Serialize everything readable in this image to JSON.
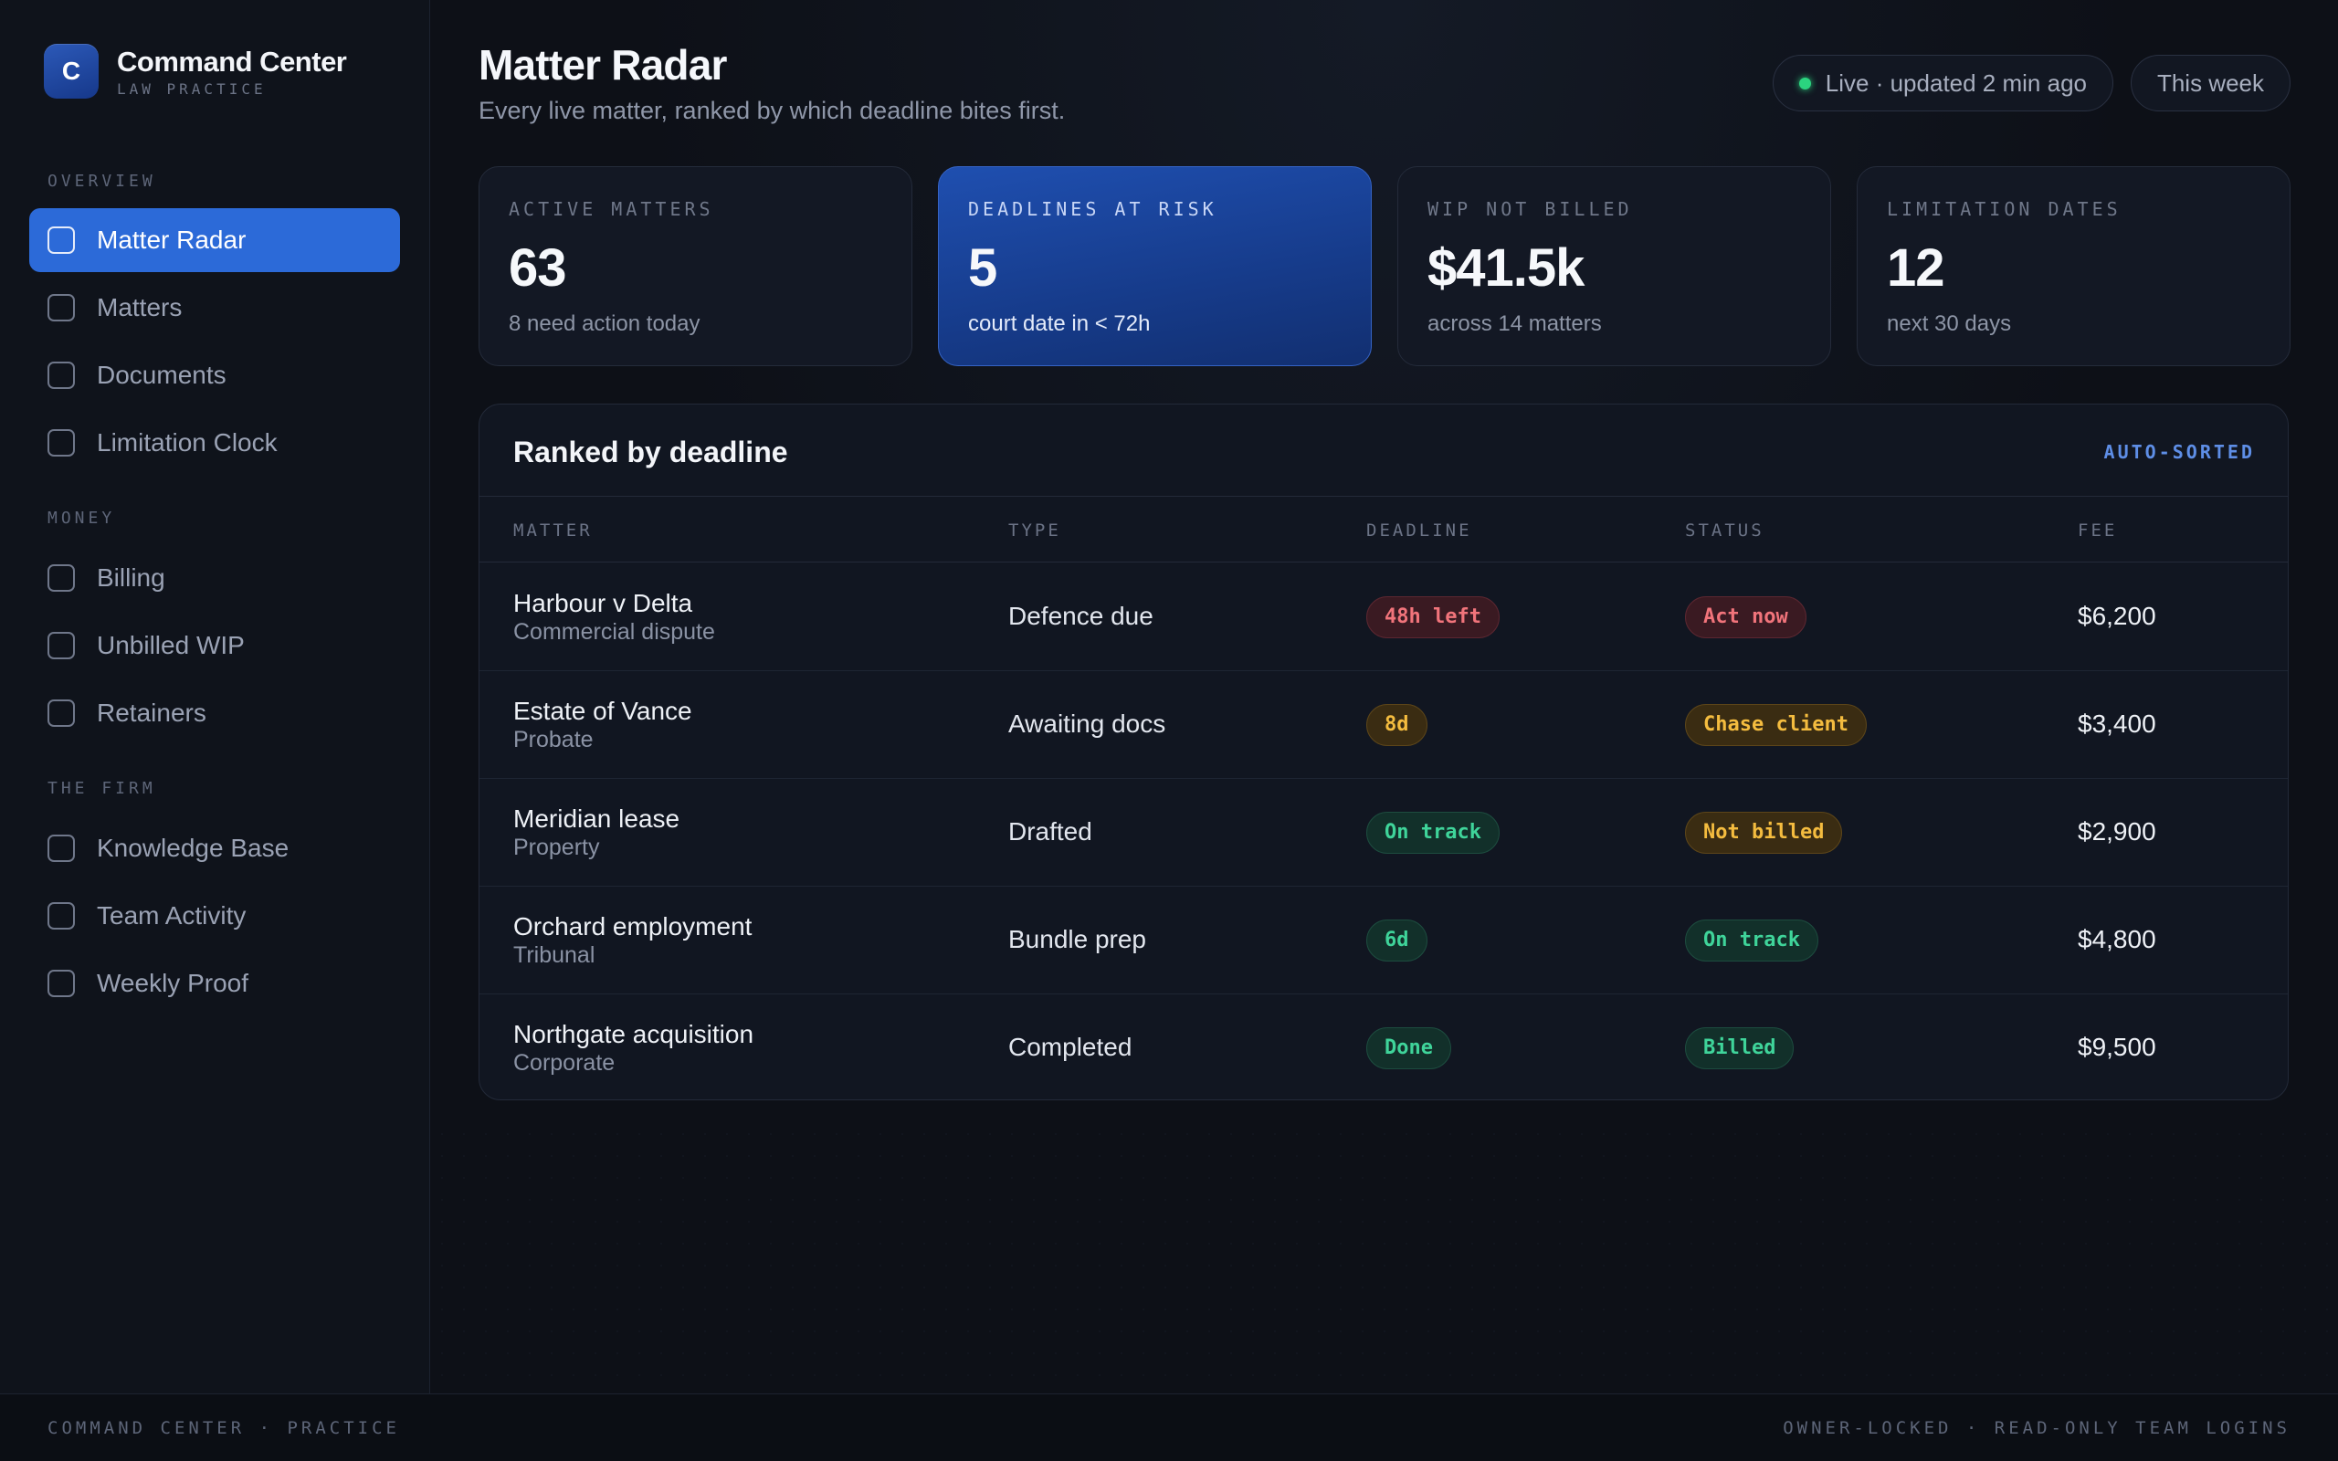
{
  "brand": {
    "logo_letter": "C",
    "title": "Command Center",
    "subtitle": "LAW PRACTICE"
  },
  "sidebar": {
    "sections": [
      {
        "label": "OVERVIEW",
        "items": [
          "Matter Radar",
          "Matters",
          "Documents",
          "Limitation Clock"
        ]
      },
      {
        "label": "MONEY",
        "items": [
          "Billing",
          "Unbilled WIP",
          "Retainers"
        ]
      },
      {
        "label": "THE FIRM",
        "items": [
          "Knowledge Base",
          "Team Activity",
          "Weekly Proof"
        ]
      }
    ],
    "active_item": "Matter Radar"
  },
  "header": {
    "title": "Matter Radar",
    "subtitle": "Every live matter, ranked by which deadline bites first.",
    "live_status": "Live · updated 2 min ago",
    "period": "This week"
  },
  "stats": [
    {
      "label": "ACTIVE MATTERS",
      "value": "63",
      "note": "8 need action today"
    },
    {
      "label": "DEADLINES AT RISK",
      "value": "5",
      "note": "court date in < 72h"
    },
    {
      "label": "WIP NOT BILLED",
      "value": "$41.5k",
      "note": "across 14 matters"
    },
    {
      "label": "LIMITATION DATES",
      "value": "12",
      "note": "next 30 days"
    }
  ],
  "table": {
    "title": "Ranked by deadline",
    "tag": "AUTO-SORTED",
    "columns": [
      "MATTER",
      "TYPE",
      "DEADLINE",
      "STATUS",
      "FEE"
    ],
    "rows": [
      {
        "matter": "Harbour v Delta",
        "category": "Commercial dispute",
        "type": "Defence due",
        "deadline": "48h left",
        "deadline_tone": "red",
        "status": "Act now",
        "status_tone": "red",
        "fee": "$6,200"
      },
      {
        "matter": "Estate of Vance",
        "category": "Probate",
        "type": "Awaiting docs",
        "deadline": "8d",
        "deadline_tone": "amber",
        "status": "Chase client",
        "status_tone": "amber",
        "fee": "$3,400"
      },
      {
        "matter": "Meridian lease",
        "category": "Property",
        "type": "Drafted",
        "deadline": "On track",
        "deadline_tone": "green",
        "status": "Not billed",
        "status_tone": "amber",
        "fee": "$2,900"
      },
      {
        "matter": "Orchard employment",
        "category": "Tribunal",
        "type": "Bundle prep",
        "deadline": "6d",
        "deadline_tone": "green",
        "status": "On track",
        "status_tone": "green",
        "fee": "$4,800"
      },
      {
        "matter": "Northgate acquisition",
        "category": "Corporate",
        "type": "Completed",
        "deadline": "Done",
        "deadline_tone": "green",
        "status": "Billed",
        "status_tone": "green",
        "fee": "$9,500"
      }
    ]
  },
  "footer": {
    "left": "COMMAND CENTER · PRACTICE",
    "right": "OWNER-LOCKED · READ-ONLY TEAM LOGINS"
  },
  "colors": {
    "accent": "#2c6ad8",
    "live": "#2bd47f",
    "red": "#f1747b",
    "amber": "#f4bc3f",
    "green": "#3fd49a"
  }
}
